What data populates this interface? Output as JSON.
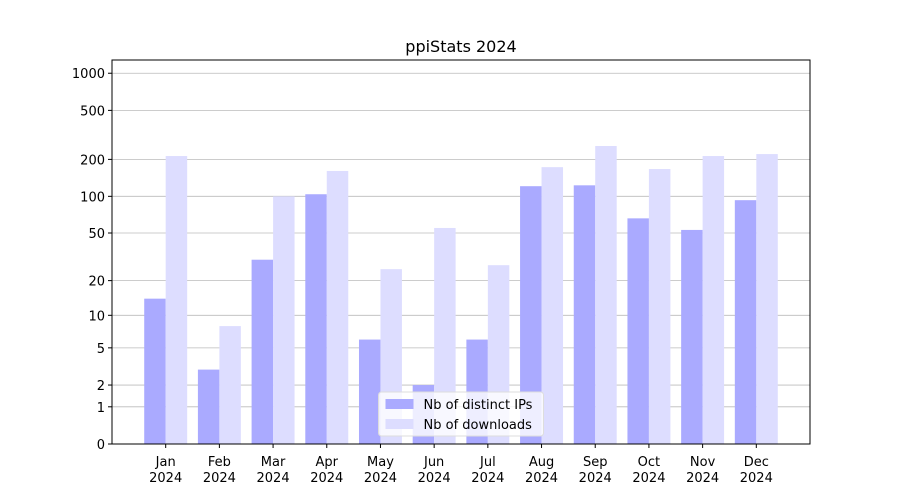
{
  "chart_data": {
    "type": "bar",
    "title": "ppiStats 2024",
    "scale": "log1p",
    "categories": [
      "Jan\n2024",
      "Feb\n2024",
      "Mar\n2024",
      "Apr\n2024",
      "May\n2024",
      "Jun\n2024",
      "Jul\n2024",
      "Aug\n2024",
      "Sep\n2024",
      "Oct\n2024",
      "Nov\n2024",
      "Dec\n2024"
    ],
    "series": [
      {
        "name": "Nb of distinct IPs",
        "color": "#aaaaff",
        "values": [
          14,
          3,
          30,
          104,
          6,
          2,
          6,
          121,
          123,
          66,
          53,
          93
        ]
      },
      {
        "name": "Nb of downloads",
        "color": "#ddddff",
        "values": [
          213,
          8,
          100,
          161,
          25,
          55,
          27,
          173,
          257,
          167,
          213,
          221
        ]
      }
    ],
    "ylim": [
      0,
      1280
    ],
    "yticks": [
      0,
      1,
      2,
      5,
      10,
      20,
      50,
      100,
      200,
      500,
      1000
    ],
    "grid": true,
    "legend": "lower center"
  }
}
